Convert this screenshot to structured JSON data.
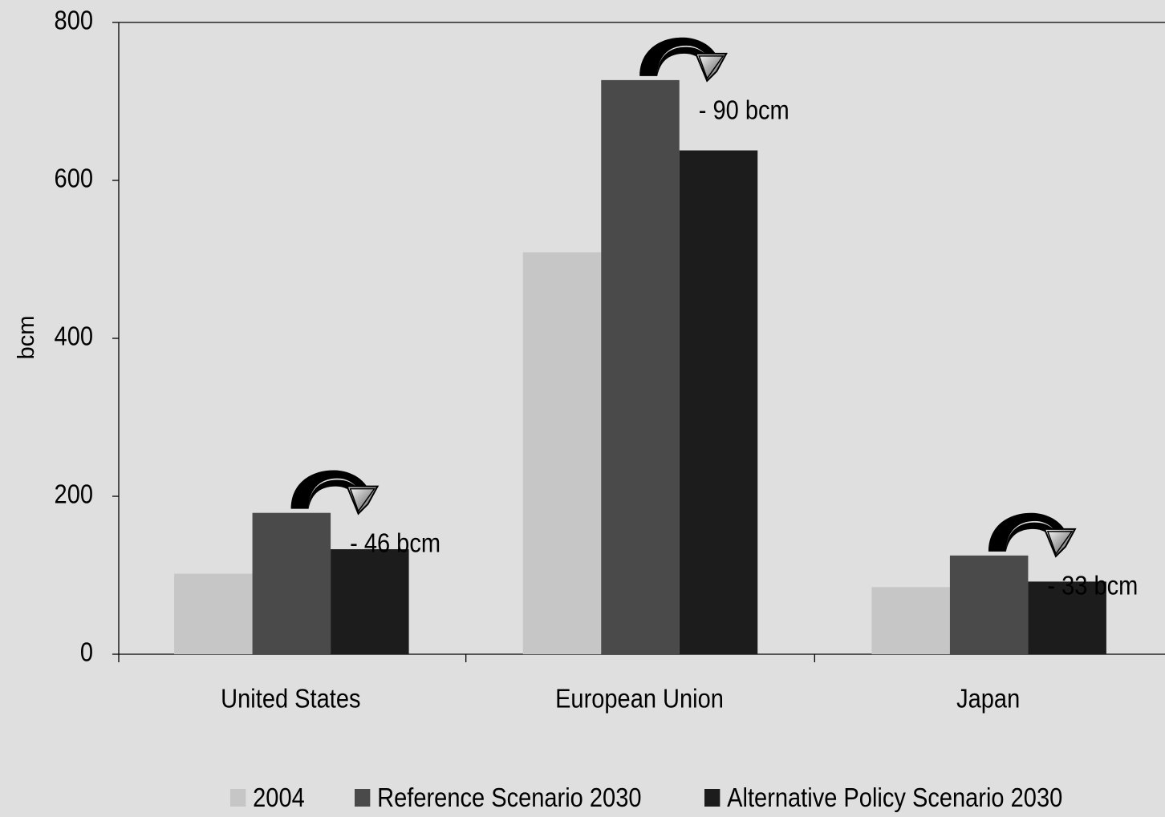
{
  "chart_data": {
    "type": "bar",
    "title": "",
    "xlabel": "",
    "ylabel": "bcm",
    "ylim": [
      0,
      800
    ],
    "yticks": [
      "0",
      "200",
      "400",
      "600",
      "800"
    ],
    "categories": [
      "United States",
      "European Union",
      "Japan"
    ],
    "series": [
      {
        "name": "2004",
        "color": "#c6c6c6",
        "values": [
          102,
          509,
          85
        ]
      },
      {
        "name": "Reference Scenario 2030",
        "color": "#4a4a4a",
        "values": [
          179,
          727,
          125
        ]
      },
      {
        "name": "Alternative Policy Scenario 2030",
        "color": "#1c1c1c",
        "values": [
          133,
          638,
          92
        ]
      }
    ],
    "annotations": [
      "- 46 bcm",
      "- 90 bcm",
      "- 33 bcm"
    ],
    "grid": false,
    "legend_position": "bottom"
  }
}
